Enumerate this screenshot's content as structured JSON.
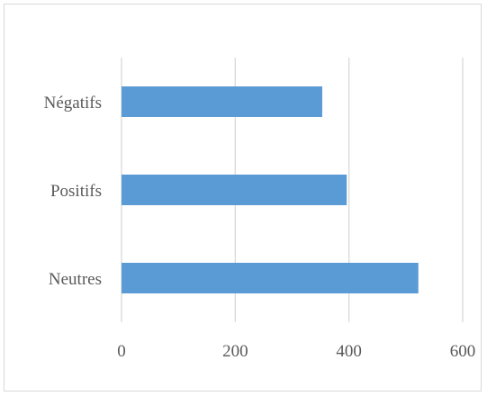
{
  "chart_data": {
    "type": "bar",
    "orientation": "horizontal",
    "title": "",
    "xlabel": "",
    "ylabel": "",
    "categories": [
      "Négatifs",
      "Positifs",
      "Neutres"
    ],
    "values": [
      353,
      396,
      522
    ],
    "xlim": [
      0,
      600
    ],
    "xticks": [
      "0",
      "200",
      "400",
      "600"
    ],
    "grid": "vertical",
    "bar_color": "#5b9bd5",
    "grid_color": "#d9d9d9",
    "legend": "none"
  }
}
